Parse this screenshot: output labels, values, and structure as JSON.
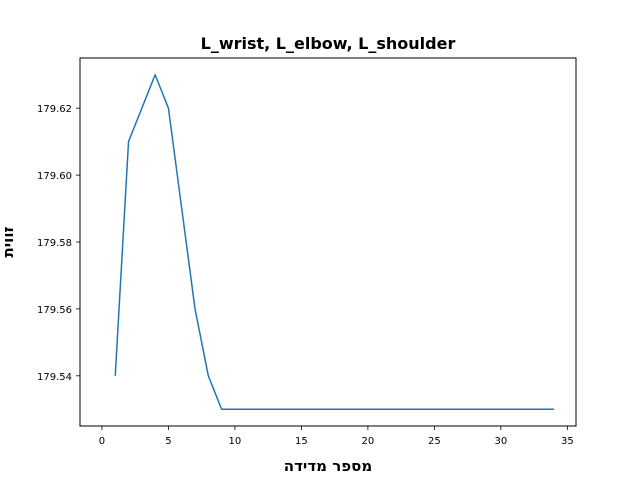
{
  "chart_data": {
    "type": "line",
    "title": "L_wrist, L_elbow, L_shoulder",
    "xlabel": "מספר מדידה",
    "ylabel": "זווית",
    "x_ticks": [
      "0",
      "5",
      "10",
      "15",
      "20",
      "25",
      "30",
      "35"
    ],
    "y_ticks": [
      "179.54",
      "179.56",
      "179.58",
      "179.60",
      "179.62"
    ],
    "xlim": [
      -1.65,
      35.65
    ],
    "ylim": [
      179.525,
      179.635
    ],
    "grid": false,
    "legend": "none",
    "series": [
      {
        "color": "#1f77b4",
        "x": [
          1,
          2,
          3,
          4,
          5,
          6,
          7,
          8,
          9,
          10,
          11,
          12,
          13,
          14,
          15,
          16,
          17,
          18,
          19,
          20,
          21,
          22,
          23,
          24,
          25,
          26,
          27,
          28,
          29,
          30,
          31,
          32,
          33,
          34
        ],
        "y": [
          179.54,
          179.61,
          179.62,
          179.63,
          179.62,
          179.59,
          179.56,
          179.54,
          179.53,
          179.53,
          179.53,
          179.53,
          179.53,
          179.53,
          179.53,
          179.53,
          179.53,
          179.53,
          179.53,
          179.53,
          179.53,
          179.53,
          179.53,
          179.53,
          179.53,
          179.53,
          179.53,
          179.53,
          179.53,
          179.53,
          179.53,
          179.53,
          179.53,
          179.53
        ]
      }
    ]
  }
}
